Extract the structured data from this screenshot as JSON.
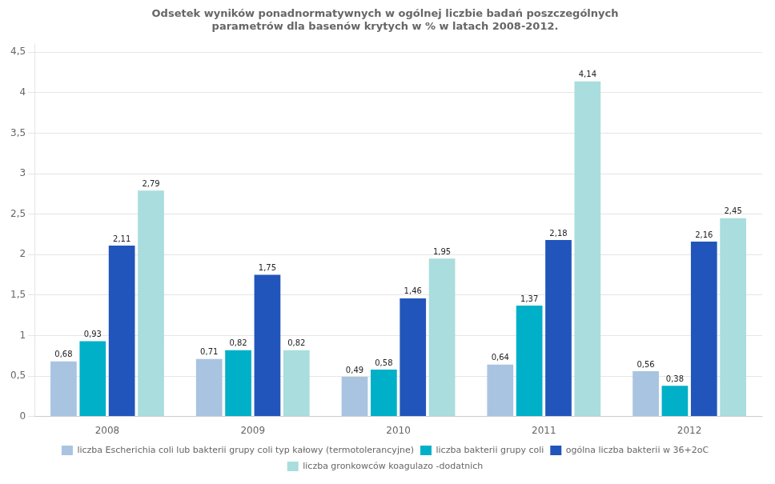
{
  "chart_data": {
    "type": "bar",
    "title": "Odsetek wyników ponadnormatywnych w ogólnej liczbie badań poszczególnych\nparametrów dla basenów krytych w % w latach 2008-2012.",
    "categories": [
      "2008",
      "2009",
      "2010",
      "2011",
      "2012"
    ],
    "series": [
      {
        "name": "liczba Escherichia coli lub bakterii grupy coli typ kałowy (termotolerancyjne)",
        "color": "#a8c4e0",
        "values": [
          0.68,
          0.71,
          0.49,
          0.64,
          0.56
        ],
        "value_labels": [
          "0,68",
          "0,71",
          "0,49",
          "0,64",
          "0,56"
        ]
      },
      {
        "name": "liczba bakterii grupy coli",
        "color": "#00b0c8",
        "values": [
          0.93,
          0.82,
          0.58,
          1.37,
          0.38
        ],
        "value_labels": [
          "0,93",
          "0,82",
          "0,58",
          "1,37",
          "0,38"
        ]
      },
      {
        "name": "ogólna liczba bakterii w 36+2oC",
        "color": "#2255bb",
        "values": [
          2.11,
          1.75,
          1.46,
          2.18,
          2.16
        ],
        "value_labels": [
          "2,11",
          "1,75",
          "1,46",
          "2,18",
          "2,16"
        ]
      },
      {
        "name": "liczba gronkowców koagulazo -dodatnich",
        "color": "#aadddd",
        "values": [
          2.79,
          0.82,
          1.95,
          4.14,
          2.45
        ],
        "value_labels": [
          "2,79",
          "0,82",
          "1,95",
          "4,14",
          "2,45"
        ]
      }
    ],
    "ylim": [
      0,
      4.6
    ],
    "yticks": [
      0,
      {
        "value": 0.5,
        "label": "0,5"
      },
      1,
      {
        "value": 1.5,
        "label": "1,5"
      },
      2,
      {
        "value": 2.5,
        "label": "2,5"
      },
      3,
      {
        "value": 3.5,
        "label": "3,5"
      },
      4,
      {
        "value": 4.5,
        "label": "4,5"
      }
    ],
    "grid": true,
    "legend": "bottom",
    "data_labels": true
  }
}
